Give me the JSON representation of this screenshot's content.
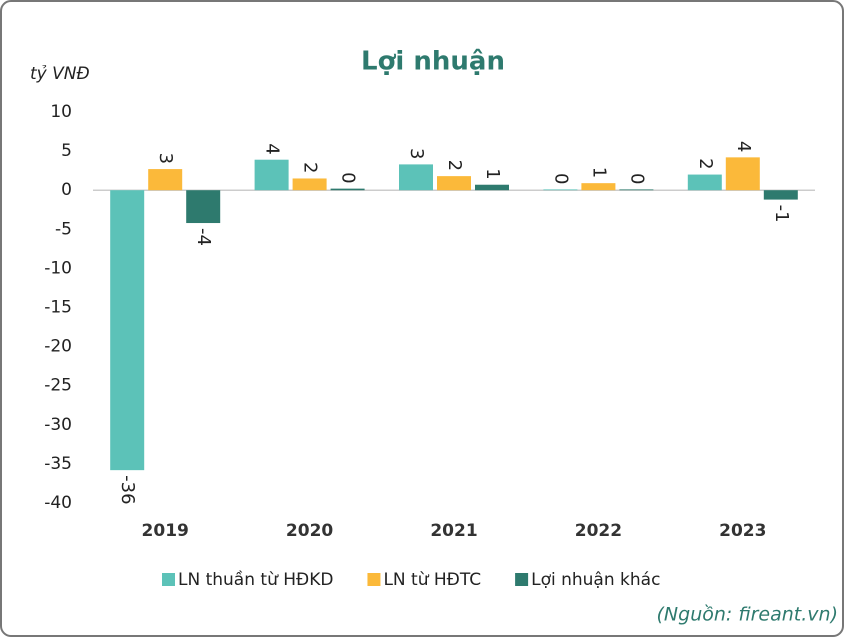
{
  "chart_data": {
    "type": "bar",
    "title": "Lợi nhuận",
    "y_label": "tỷ VNĐ",
    "source": "(Nguồn: fireant.vn)",
    "categories": [
      "2019",
      "2020",
      "2021",
      "2022",
      "2023"
    ],
    "series": [
      {
        "name": "LN thuần từ HĐKD",
        "color": "#5cc2b8",
        "values": [
          -35.8,
          3.9,
          3.3,
          0.1,
          2.0
        ],
        "value_labels": [
          "-36",
          "4",
          "3",
          "0",
          "2"
        ]
      },
      {
        "name": "LN từ HĐTC",
        "color": "#fbb93a",
        "values": [
          2.7,
          1.5,
          1.8,
          0.9,
          4.2
        ],
        "value_labels": [
          "3",
          "2",
          "2",
          "1",
          "4"
        ]
      },
      {
        "name": "Lợi nhuận khác",
        "color": "#2e7a6e",
        "values": [
          -4.2,
          0.2,
          0.7,
          0.1,
          -1.2
        ],
        "value_labels": [
          "-4",
          "0",
          "1",
          "0",
          "-1"
        ]
      }
    ],
    "ylim": [
      -40,
      10
    ],
    "yticks": [
      10,
      5,
      0,
      -5,
      -10,
      -15,
      -20,
      -25,
      -30,
      -35,
      -40
    ],
    "legend": "bottom"
  }
}
